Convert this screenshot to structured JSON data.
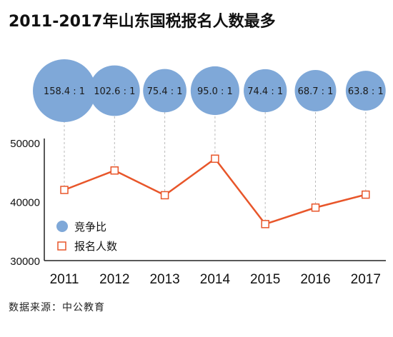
{
  "chart_data": {
    "type": "line",
    "title": "2011-2017年山东国税报名人数最多",
    "categories": [
      "2011",
      "2012",
      "2013",
      "2014",
      "2015",
      "2016",
      "2017"
    ],
    "ylim": [
      30000,
      50000
    ],
    "y_ticks": [
      "30000",
      "40000",
      "50000"
    ],
    "grid": false,
    "legend_position": "middle-left",
    "series": [
      {
        "name": "竞争比",
        "kind": "bubble",
        "color": "#7fa8d8",
        "values": [
          158.4,
          102.6,
          75.4,
          95.0,
          74.4,
          68.7,
          63.8
        ],
        "labels": [
          "158.4 : 1",
          "102.6 : 1",
          "75.4 : 1",
          "95.0 : 1",
          "74.4 : 1",
          "68.7 : 1",
          "63.8 : 1"
        ]
      },
      {
        "name": "报名人数",
        "kind": "line",
        "color": "#e8562a",
        "values": [
          42000,
          45300,
          41100,
          47300,
          36200,
          39000,
          41200
        ]
      }
    ]
  },
  "source": "数据来源：中公教育"
}
